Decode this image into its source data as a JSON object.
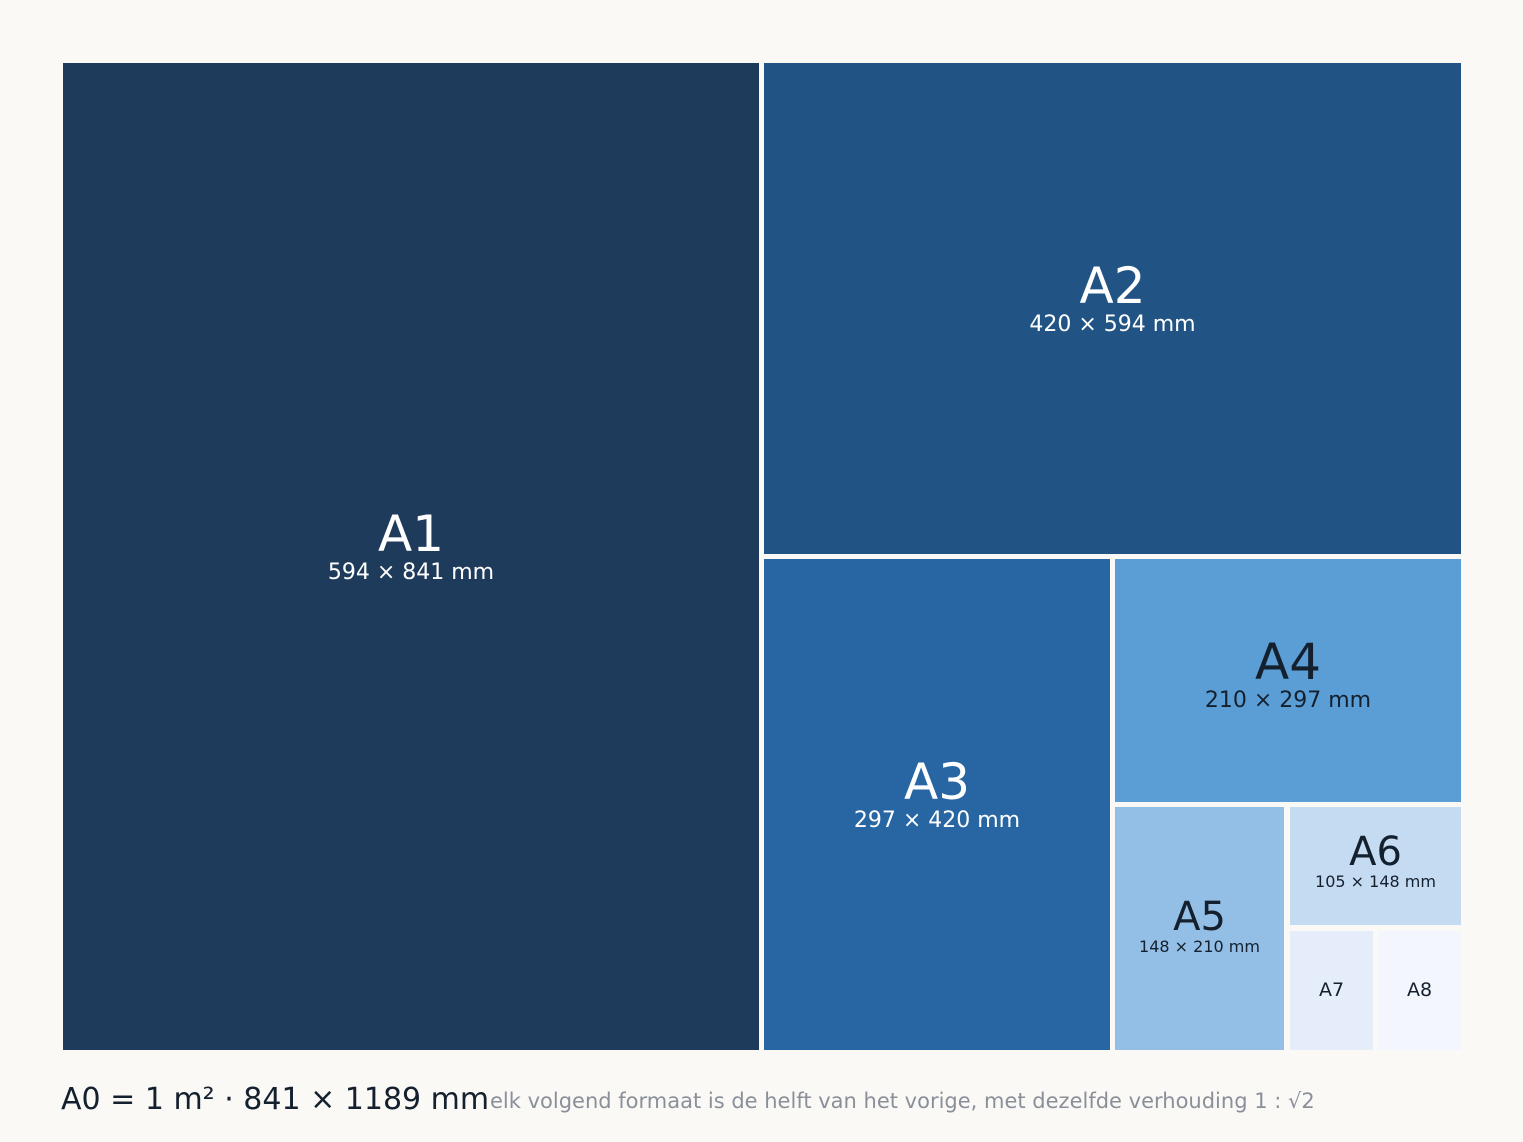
{
  "sheets": {
    "a1": {
      "name": "A1",
      "dims": "594 × 841 mm"
    },
    "a2": {
      "name": "A2",
      "dims": "420 × 594 mm"
    },
    "a3": {
      "name": "A3",
      "dims": "297 × 420 mm"
    },
    "a4": {
      "name": "A4",
      "dims": "210 × 297 mm"
    },
    "a5": {
      "name": "A5",
      "dims": "148 × 210 mm"
    },
    "a6": {
      "name": "A6",
      "dims": "105 × 148 mm"
    },
    "a7": {
      "name": "A7"
    },
    "a8": {
      "name": "A8"
    }
  },
  "footer": {
    "main": "A0 = 1 m²  ·  841 × 1189 mm",
    "note": "elk volgend formaat is de helft van het vorige, met dezelfde verhouding 1 : √2"
  }
}
